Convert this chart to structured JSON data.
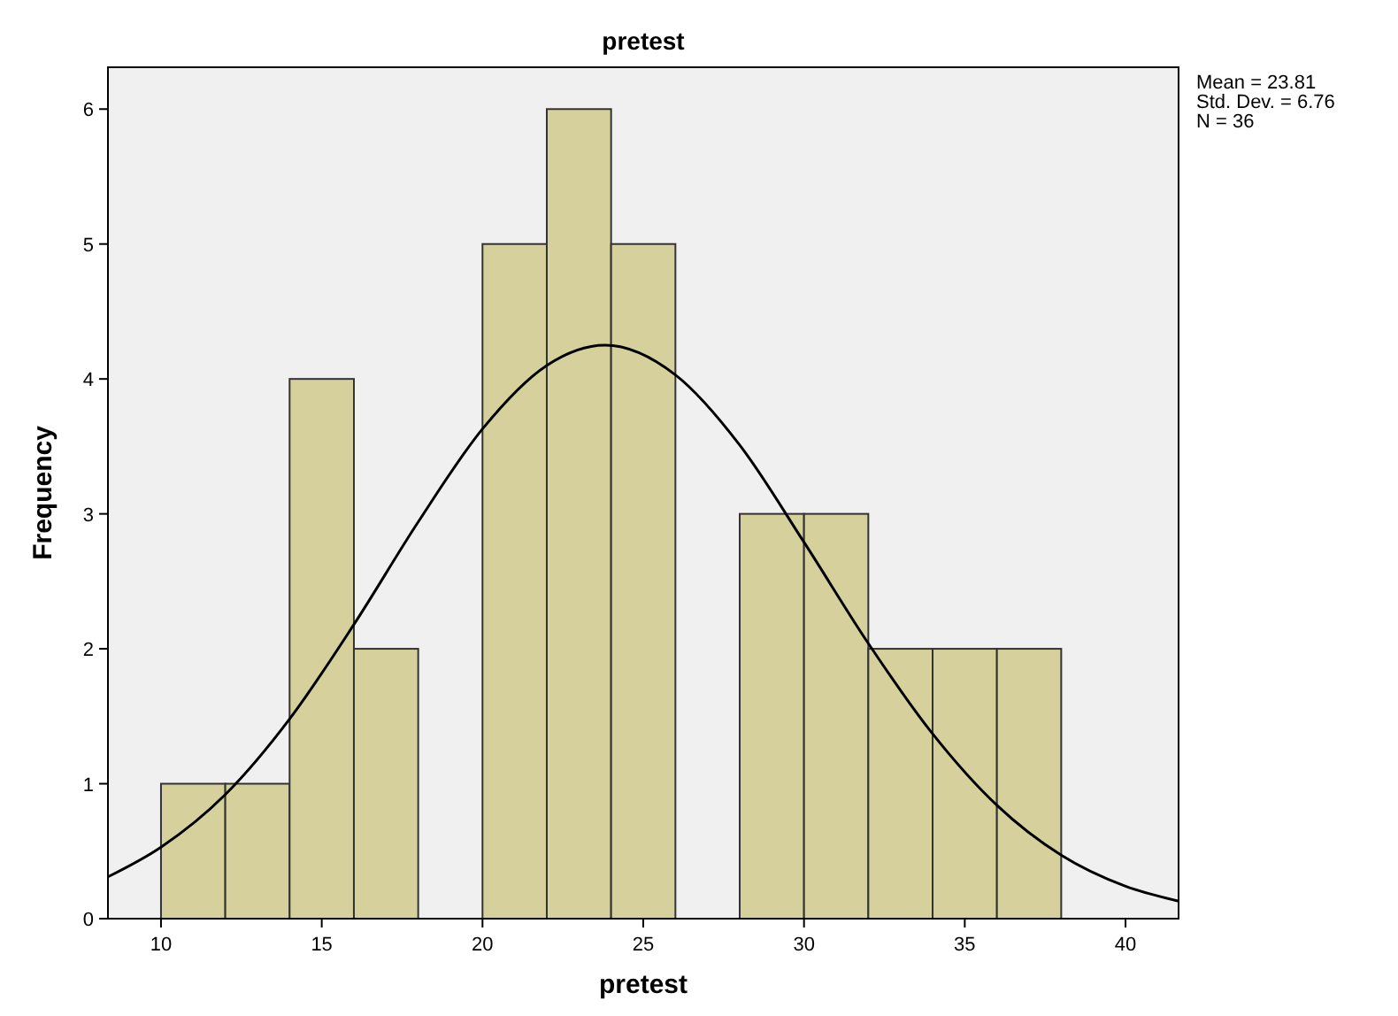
{
  "chart_data": {
    "type": "histogram",
    "title": "pretest",
    "xlabel": "pretest",
    "ylabel": "Frequency",
    "xlim": [
      8.35,
      41.65
    ],
    "xticks": [
      10,
      15,
      20,
      25,
      30,
      35,
      40
    ],
    "ylim": [
      0,
      6.31
    ],
    "yticks": [
      0,
      1,
      2,
      3,
      4,
      5,
      6
    ],
    "grid": false,
    "annotations": [
      "Mean = 23.81",
      "Std. Dev. = 6.76",
      "N = 36"
    ],
    "series": [
      {
        "color": "#d6d19c",
        "bins": [
          10,
          12,
          14,
          16,
          18,
          20,
          22,
          24,
          26,
          28,
          30,
          32,
          34,
          36,
          38
        ],
        "values": [
          1,
          1,
          4,
          2,
          0,
          5,
          6,
          5,
          0,
          3,
          3,
          2,
          2,
          2
        ]
      },
      {
        "type": "line",
        "color": "#000000",
        "x": [
          8.35,
          10,
          12,
          14,
          16,
          18,
          20,
          22,
          23.81,
          26,
          28,
          30,
          32,
          34,
          36,
          38,
          40,
          41.65
        ],
        "values": [
          0.31,
          0.53,
          0.92,
          1.48,
          2.18,
          2.94,
          3.63,
          4.1,
          4.25,
          4.03,
          3.51,
          2.79,
          2.04,
          1.37,
          0.84,
          0.47,
          0.24,
          0.13
        ]
      }
    ]
  }
}
